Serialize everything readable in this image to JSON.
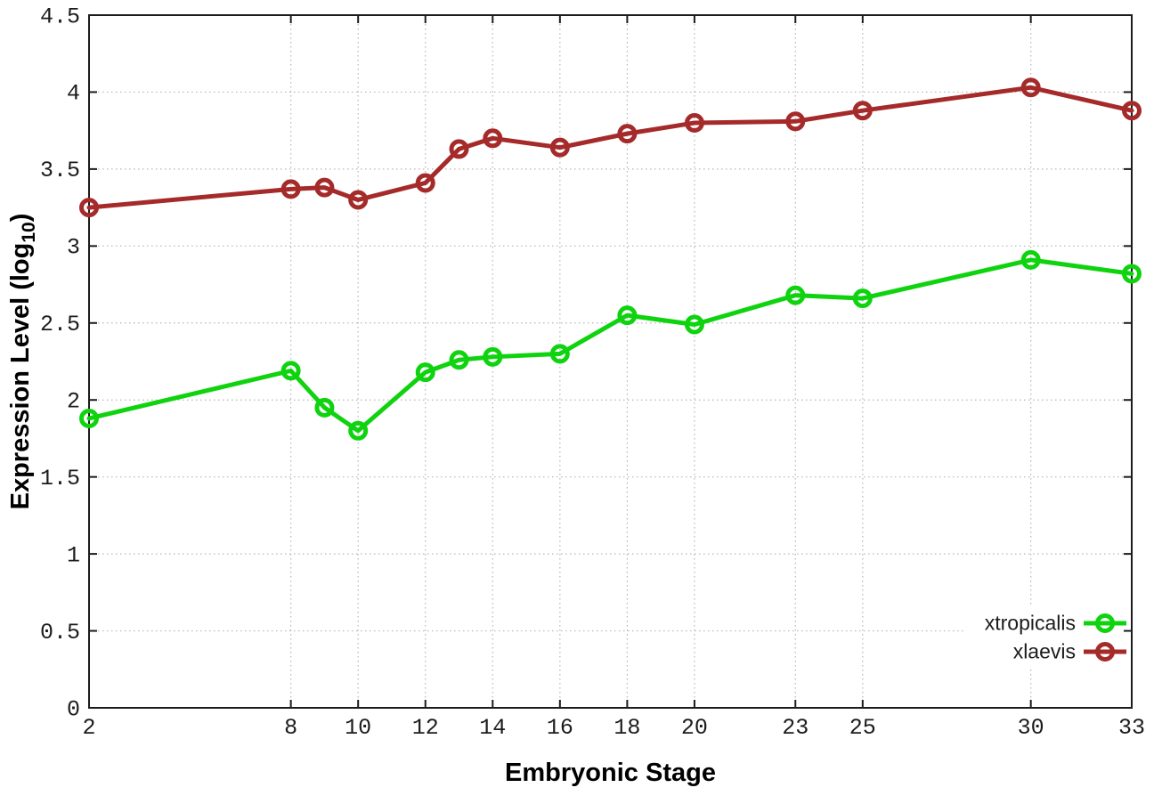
{
  "chart_data": {
    "type": "line",
    "title": "",
    "xlabel": "Embryonic Stage",
    "ylabel": "Expression Level (log10)",
    "ylabel_parts": {
      "prefix": "Expression Level (log",
      "sub": "10",
      "suffix": ")"
    },
    "xlim": [
      2,
      33
    ],
    "ylim": [
      0,
      4.5
    ],
    "grid": true,
    "legend_position": "bottom-right",
    "x_ticks": [
      2,
      8,
      10,
      12,
      14,
      16,
      18,
      20,
      23,
      25,
      30,
      33
    ],
    "x_tick_labels": [
      "2",
      "8",
      "10",
      "12",
      "14",
      "16",
      "18",
      "20",
      "23",
      "25",
      "30",
      "33"
    ],
    "y_ticks": [
      0,
      0.5,
      1,
      1.5,
      2,
      2.5,
      3,
      3.5,
      4,
      4.5
    ],
    "y_tick_labels": [
      "0",
      "0.5",
      "1",
      "1.5",
      "2",
      "2.5",
      "3",
      "3.5",
      "4",
      "4.5"
    ],
    "x": [
      2,
      8,
      9,
      10,
      12,
      13,
      14,
      16,
      18,
      20,
      23,
      25,
      30,
      33
    ],
    "series": [
      {
        "name": "xtropicalis",
        "color": "#0fd30f",
        "values": [
          1.88,
          2.19,
          1.95,
          1.8,
          2.18,
          2.26,
          2.28,
          2.3,
          2.55,
          2.49,
          2.68,
          2.66,
          2.91,
          2.82
        ]
      },
      {
        "name": "xlaevis",
        "color": "#a52a2a",
        "values": [
          3.25,
          3.37,
          3.38,
          3.3,
          3.41,
          3.63,
          3.7,
          3.64,
          3.73,
          3.8,
          3.81,
          3.88,
          4.03,
          3.88
        ]
      }
    ]
  },
  "colors": {
    "background": "#ffffff",
    "axis": "#1c1c1c",
    "grid": "#b5b5b5",
    "tick_text": "#1c1c1c",
    "series_xtropicalis": "#0fd30f",
    "series_xlaevis": "#a52a2a"
  }
}
